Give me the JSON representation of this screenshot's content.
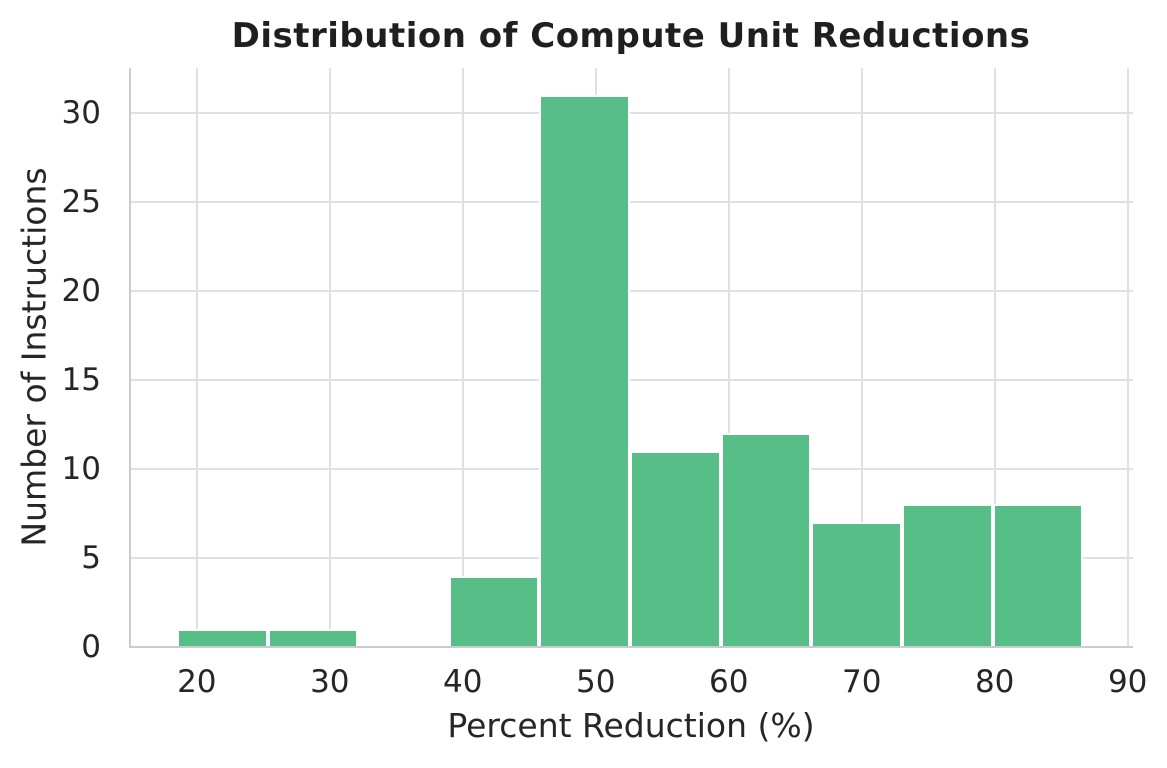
{
  "chart_data": {
    "type": "bar",
    "subtype": "histogram",
    "title": "Distribution of Compute Unit Reductions",
    "xlabel": "Percent Reduction (%)",
    "ylabel": "Number of Instructions",
    "bin_edges": [
      18.5,
      25.32,
      32.13,
      38.95,
      45.76,
      52.58,
      59.39,
      66.21,
      73.02,
      79.84,
      86.65
    ],
    "counts": [
      1,
      1,
      0,
      4,
      31,
      11,
      12,
      7,
      8,
      8
    ],
    "xticks": [
      20,
      30,
      40,
      50,
      60,
      70,
      80,
      90
    ],
    "yticks": [
      0,
      5,
      10,
      15,
      20,
      25,
      30
    ],
    "xlim": [
      14.9,
      90.4
    ],
    "ylim": [
      0,
      32.5
    ],
    "grid": true,
    "legend": false,
    "colors": {
      "bar_fill": "#58be88",
      "bar_edge": "#ffffff",
      "grid": "#e0e0e0",
      "spine": "#cccccc",
      "text": "#262626"
    }
  }
}
